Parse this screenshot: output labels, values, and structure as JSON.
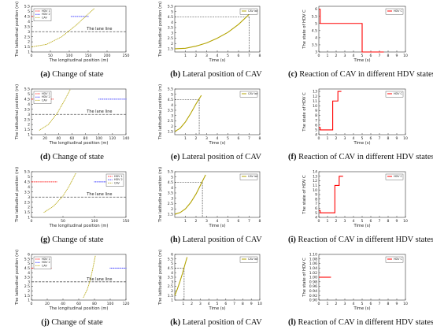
{
  "colors": {
    "red": "#ff0000",
    "blue": "#1a1aff",
    "olive": "#b3a300",
    "dash": "#555555"
  },
  "captions": [
    {
      "tag": "(a)",
      "text": " Change of state"
    },
    {
      "tag": "(b)",
      "text": " Lateral position of CAV"
    },
    {
      "tag": "(c)",
      "text": " Reaction of CAV in different HDV states"
    },
    {
      "tag": "(d)",
      "text": " Change of state"
    },
    {
      "tag": "(e)",
      "text": " Lateral position of CAV"
    },
    {
      "tag": "(f)",
      "text": " Reaction of CAV in different HDV states"
    },
    {
      "tag": "(g)",
      "text": " Change of state"
    },
    {
      "tag": "(h)",
      "text": " Lateral position of CAV"
    },
    {
      "tag": "(i)",
      "text": " Reaction of CAV in different HDV states"
    },
    {
      "tag": "(j)",
      "text": " Change of state"
    },
    {
      "tag": "(k)",
      "text": " Lateral position of CAV"
    },
    {
      "tag": "(l)",
      "text": " Reaction of CAV in different HDV states"
    }
  ],
  "chart_data": [
    {
      "type": "scatter",
      "xlabel": "The longitudinal position (m)",
      "ylabel": "The latitudinal position (m)",
      "xlim": [
        0,
        250
      ],
      "xticks": [
        0,
        50,
        100,
        150,
        200,
        250
      ],
      "ylim": [
        1,
        5.5
      ],
      "yticks": [
        1,
        1.5,
        2,
        2.5,
        3,
        3.5,
        4,
        4.5,
        5,
        5.5
      ],
      "lane_line": {
        "y": 3,
        "label": "The lane line"
      },
      "series": [
        {
          "name": "HDV 1",
          "color": "red",
          "x": [
            0,
            45
          ],
          "y": [
            4.5,
            4.5
          ]
        },
        {
          "name": "HDV 2",
          "color": "blue",
          "x": [
            105,
            150
          ],
          "y": [
            4.5,
            4.5
          ]
        },
        {
          "name": "CAV",
          "color": "olive",
          "x": [
            0,
            40,
            80,
            120,
            165
          ],
          "y": [
            1.5,
            1.75,
            2.5,
            3.7,
            5.25
          ]
        }
      ],
      "legend": "top-left",
      "legend_labels": [
        "HDV 1",
        "HDV 2",
        "CAV"
      ]
    },
    {
      "type": "line",
      "xlabel": "Time (s)",
      "ylabel": "The latitudinal position (m)",
      "xlim": [
        0,
        8
      ],
      "xticks": [
        1,
        2,
        3,
        4,
        5,
        6,
        7,
        8
      ],
      "ylim": [
        1.2,
        5.5
      ],
      "yticks": [
        1.5,
        2,
        2.5,
        3,
        3.5,
        4,
        4.5,
        5,
        5.5
      ],
      "series": [
        {
          "name": "CAV lat",
          "color": "olive",
          "x": [
            0,
            1,
            2,
            3,
            4,
            5,
            6,
            7,
            7.5
          ],
          "y": [
            1.5,
            1.55,
            1.75,
            2.05,
            2.5,
            3.05,
            3.8,
            4.75,
            5.2
          ]
        }
      ],
      "marker": {
        "x": 7,
        "y": 4.5
      },
      "legend": "top-right",
      "legend_labels": [
        "CAV lat"
      ]
    },
    {
      "type": "line",
      "xlabel": "Time (s)",
      "ylabel": "The state of HDV C",
      "xlim": [
        0,
        10
      ],
      "xticks": [
        0,
        1,
        2,
        3,
        4,
        5,
        6,
        7,
        8,
        9,
        10
      ],
      "ylim": [
        3,
        6.2
      ],
      "yticks": [
        3,
        3.5,
        4,
        4.5,
        5,
        5.5,
        6
      ],
      "series": [
        {
          "name": "HDV C",
          "color": "red",
          "x": [
            0,
            0.15,
            0.15,
            5,
            5,
            7.5
          ],
          "y": [
            6,
            6,
            5,
            5,
            3,
            3
          ]
        }
      ],
      "legend": "top-right",
      "legend_labels": [
        "HDV C"
      ]
    },
    {
      "type": "scatter",
      "xlabel": "The longitudinal position (m)",
      "ylabel": "The latitudinal position (m)",
      "xlim": [
        0,
        140
      ],
      "xticks": [
        0,
        20,
        40,
        60,
        80,
        100,
        120,
        140
      ],
      "ylim": [
        1,
        5.5
      ],
      "yticks": [
        1,
        1.5,
        2,
        2.5,
        3,
        3.5,
        4,
        4.5,
        5,
        5.5
      ],
      "lane_line": {
        "y": 3,
        "label": "The lane line"
      },
      "series": [
        {
          "name": "HDV 1",
          "color": "red",
          "x": [
            0,
            32
          ],
          "y": [
            4.5,
            4.5
          ]
        },
        {
          "name": "HDV 2",
          "color": "blue",
          "x": [
            100,
            140
          ],
          "y": [
            4.5,
            4.5
          ]
        },
        {
          "name": "CAV",
          "color": "olive",
          "x": [
            12,
            25,
            38,
            50,
            57
          ],
          "y": [
            1.45,
            2,
            3.1,
            4.5,
            5.4
          ]
        }
      ],
      "legend": "top-left",
      "legend_labels": [
        "HDV 1",
        "HDV 2",
        "CAV"
      ]
    },
    {
      "type": "line",
      "xlabel": "Time (s)",
      "ylabel": "The latitudinal position (m)",
      "xlim": [
        0,
        8
      ],
      "xticks": [
        1,
        2,
        3,
        4,
        5,
        6,
        7,
        8
      ],
      "ylim": [
        1.2,
        5.5
      ],
      "yticks": [
        1.5,
        2,
        2.5,
        3,
        3.5,
        4,
        4.5,
        5,
        5.5
      ],
      "series": [
        {
          "name": "CAV lat",
          "color": "olive",
          "x": [
            0,
            0.5,
            1,
            1.5,
            2,
            2.5
          ],
          "y": [
            1.5,
            1.8,
            2.4,
            3.2,
            4.1,
            4.9
          ]
        }
      ],
      "marker": {
        "x": 2.3,
        "y": 4.5
      },
      "legend": "top-right",
      "legend_labels": [
        "CAV lat"
      ]
    },
    {
      "type": "line",
      "xlabel": "Time (s)",
      "ylabel": "The state of HDV C",
      "xlim": [
        0,
        10
      ],
      "xticks": [
        0,
        1,
        2,
        3,
        4,
        5,
        6,
        7,
        8,
        9,
        10
      ],
      "ylim": [
        4,
        13.5
      ],
      "yticks": [
        4,
        5,
        6,
        7,
        8,
        9,
        10,
        11,
        12,
        13
      ],
      "series": [
        {
          "name": "HDV C",
          "color": "red",
          "x": [
            0,
            0.15,
            0.15,
            1.6,
            1.6,
            2.2,
            2.2,
            2.6
          ],
          "y": [
            5.5,
            5.5,
            5,
            5,
            11,
            11,
            13,
            13
          ]
        }
      ],
      "legend": "top-right",
      "legend_labels": [
        "HDV C"
      ]
    },
    {
      "type": "scatter",
      "xlabel": "The longitudinal position (m)",
      "ylabel": "The latitudinal position (m)",
      "xlim": [
        0,
        150
      ],
      "xticks": [
        0,
        50,
        100,
        150
      ],
      "ylim": [
        1,
        5.5
      ],
      "yticks": [
        1,
        1.5,
        2,
        2.5,
        3,
        3.5,
        4,
        4.5,
        5,
        5.5
      ],
      "lane_line": {
        "y": 3,
        "label": "The lane line"
      },
      "series": [
        {
          "name": "HDV 1",
          "color": "red",
          "x": [
            0,
            40
          ],
          "y": [
            4.5,
            4.5
          ]
        },
        {
          "name": "HDV 2",
          "color": "blue",
          "x": [
            100,
            145
          ],
          "y": [
            4.5,
            4.5
          ]
        },
        {
          "name": "CAV",
          "color": "olive",
          "x": [
            20,
            35,
            50,
            60,
            70
          ],
          "y": [
            1.5,
            2.1,
            3.1,
            4.1,
            5.3
          ]
        }
      ],
      "legend": "top-right",
      "legend_labels": [
        "HDV 1",
        "HDV 2",
        "CAV"
      ]
    },
    {
      "type": "line",
      "xlabel": "Time (s)",
      "ylabel": "The latitudinal position (m)",
      "xlim": [
        0,
        8
      ],
      "xticks": [
        1,
        2,
        3,
        4,
        5,
        6,
        7,
        8
      ],
      "ylim": [
        1.2,
        5.5
      ],
      "yticks": [
        1.5,
        2,
        2.5,
        3,
        3.5,
        4,
        4.5,
        5,
        5.5
      ],
      "series": [
        {
          "name": "CAV lat",
          "color": "olive",
          "x": [
            0,
            0.5,
            1,
            1.5,
            2,
            2.5,
            2.9
          ],
          "y": [
            1.5,
            1.65,
            2,
            2.6,
            3.4,
            4.4,
            5.2
          ]
        }
      ],
      "marker": {
        "x": 2.6,
        "y": 4.5
      },
      "legend": "top-right",
      "legend_labels": [
        "CAV lat"
      ]
    },
    {
      "type": "line",
      "xlabel": "Time (s)",
      "ylabel": "The state of HDV C",
      "xlim": [
        0,
        10
      ],
      "xticks": [
        0,
        1,
        2,
        3,
        4,
        5,
        6,
        7,
        8,
        9,
        10
      ],
      "ylim": [
        4,
        14
      ],
      "yticks": [
        4,
        5,
        6,
        7,
        8,
        9,
        10,
        11,
        12,
        13,
        14
      ],
      "series": [
        {
          "name": "HDV C",
          "color": "red",
          "x": [
            0,
            0.15,
            0.15,
            1.85,
            1.85,
            2.35,
            2.35,
            2.8
          ],
          "y": [
            5.5,
            5.5,
            5,
            5,
            11,
            11,
            13,
            13
          ]
        }
      ],
      "legend": "top-right",
      "legend_labels": [
        "HDV C"
      ]
    },
    {
      "type": "scatter",
      "xlabel": "The longitudinal position (m)",
      "ylabel": "The latitudinal position (m)",
      "xlim": [
        0,
        120
      ],
      "xticks": [
        0,
        20,
        40,
        60,
        80,
        100,
        120
      ],
      "ylim": [
        1,
        6
      ],
      "yticks": [
        1,
        1.5,
        2,
        2.5,
        3,
        3.5,
        4,
        4.5,
        5,
        5.5,
        6
      ],
      "lane_line": {
        "y": 3,
        "label": "The lane line"
      },
      "series": [
        {
          "name": "HDV 1",
          "color": "red",
          "x": [
            0,
            25
          ],
          "y": [
            4.5,
            4.5
          ]
        },
        {
          "name": "HDV 2",
          "color": "blue",
          "x": [
            100,
            120
          ],
          "y": [
            4.5,
            4.5
          ]
        },
        {
          "name": "CAV",
          "color": "olive",
          "x": [
            66,
            71,
            75,
            78,
            81
          ],
          "y": [
            1.3,
            2.2,
            3.3,
            4.5,
            5.8
          ]
        }
      ],
      "legend": "top-left",
      "legend_labels": [
        "HDV 1",
        "HDV 2",
        "CAV"
      ]
    },
    {
      "type": "line",
      "xlabel": "Time (s)",
      "ylabel": "The latitudinal position (m)",
      "xlim": [
        0,
        10
      ],
      "xticks": [
        1,
        2,
        3,
        4,
        5,
        6,
        7,
        8,
        9,
        10
      ],
      "ylim": [
        1,
        6
      ],
      "yticks": [
        1,
        1.5,
        2,
        2.5,
        3,
        3.5,
        4,
        4.5,
        5,
        5.5,
        6
      ],
      "series": [
        {
          "name": "CAV lat",
          "color": "olive",
          "x": [
            0,
            0.3,
            0.6,
            0.9,
            1.2,
            1.45
          ],
          "y": [
            1.5,
            2.2,
            3.0,
            3.9,
            4.9,
            5.7
          ]
        }
      ],
      "marker": {
        "x": 1.1,
        "y": 4.5
      },
      "legend": "top-right",
      "legend_labels": [
        "CAV lat"
      ]
    },
    {
      "type": "line",
      "xlabel": "Time (s)",
      "ylabel": "The state of HDV C",
      "xlim": [
        0,
        10
      ],
      "xticks": [
        0,
        1,
        2,
        3,
        4,
        5,
        6,
        7,
        8,
        9,
        10
      ],
      "ylim": [
        0.9,
        1.1
      ],
      "yticks": [
        0.9,
        0.92,
        0.94,
        0.96,
        0.98,
        1.0,
        1.02,
        1.04,
        1.06,
        1.08,
        1.1
      ],
      "tick_labels": [
        "0.90",
        "0.92",
        "0.94",
        "0.96",
        "0.98",
        "1.00",
        "1.02",
        "1.04",
        "1.06",
        "1.08",
        "1.10"
      ],
      "series": [
        {
          "name": "HDV C",
          "color": "red",
          "x": [
            0,
            1.4
          ],
          "y": [
            1,
            1
          ]
        }
      ],
      "legend": "top-right",
      "legend_labels": [
        "HDV C"
      ]
    }
  ]
}
